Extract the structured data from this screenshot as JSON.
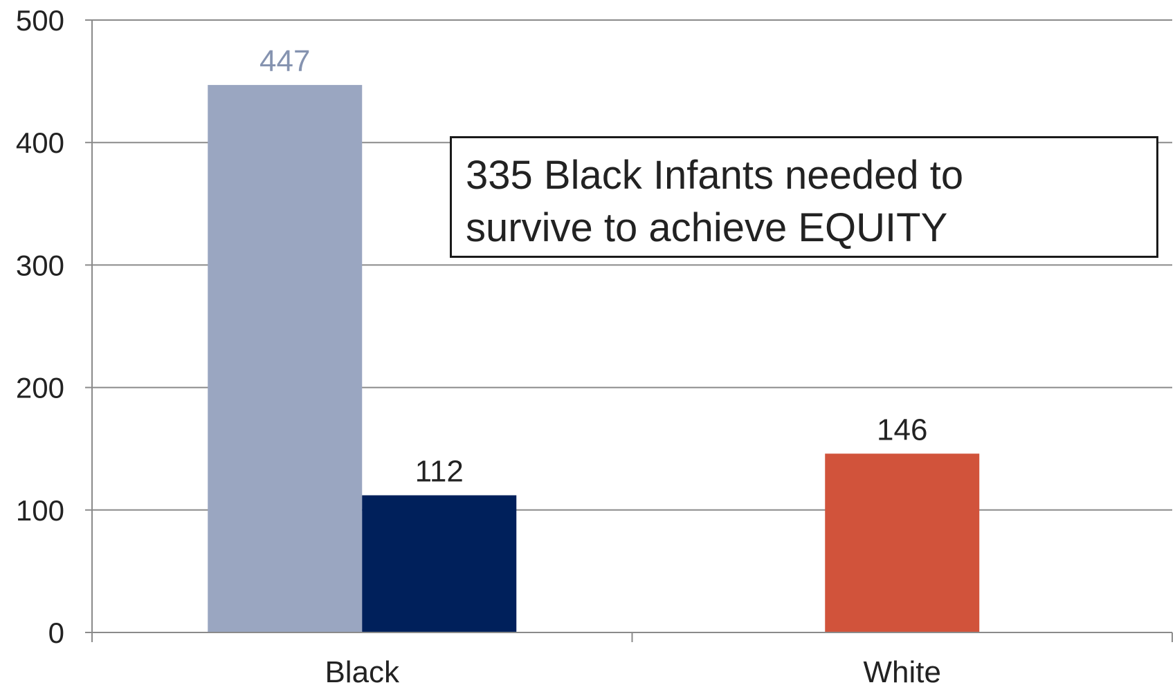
{
  "chart_data": {
    "type": "bar",
    "categories": [
      "Black",
      "White"
    ],
    "series": [
      {
        "values": [
          447,
          null
        ],
        "color": "#9aa6c1",
        "label_color": "#8593b0"
      },
      {
        "values": [
          112,
          null
        ],
        "color": "#00205b",
        "label_color": "#222222"
      },
      {
        "values": [
          null,
          146
        ],
        "color": "#d1533b",
        "label_color": "#222222"
      }
    ],
    "ylim": [
      0,
      500
    ],
    "yticks": [
      0,
      100,
      200,
      300,
      400,
      500
    ],
    "grid": true,
    "annotation": {
      "lines": [
        "335 Black Infants needed to",
        "survive to achieve EQUITY"
      ]
    }
  }
}
